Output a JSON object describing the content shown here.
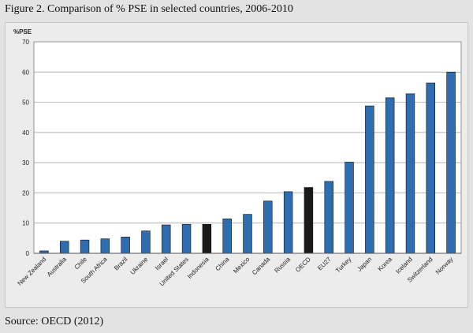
{
  "figure": {
    "title": "Figure 2. Comparison of % PSE in selected countries, 2006-2010",
    "source": "Source: OECD (2012)"
  },
  "colors": {
    "default_bar": "#2e6db0",
    "highlight_bar": "#1a1a1a",
    "plot_bg": "#ffffff",
    "grid": "#9a9a9a"
  },
  "chart_data": {
    "type": "bar",
    "title": "",
    "xlabel": "",
    "ylabel": "%PSE",
    "ylim": [
      0,
      70
    ],
    "yticks": [
      0,
      10,
      20,
      30,
      40,
      50,
      60,
      70
    ],
    "grid": true,
    "categories": [
      "New Zealand",
      "Australia",
      "Chile",
      "South Africa",
      "Brazil",
      "Ukraine",
      "Israel",
      "United States",
      "Indonesia",
      "China",
      "Mexico",
      "Canada",
      "Russia",
      "OECD",
      "EU27",
      "Turkey",
      "Japan",
      "Korea",
      "Iceland",
      "Switzerland",
      "Norway"
    ],
    "values": [
      0.8,
      4.0,
      4.4,
      4.8,
      5.4,
      7.4,
      9.4,
      9.6,
      9.6,
      11.4,
      12.9,
      17.3,
      20.4,
      21.8,
      23.8,
      30.2,
      48.8,
      51.5,
      52.8,
      56.4,
      60.0
    ],
    "highlight": [
      "Indonesia",
      "OECD"
    ]
  }
}
